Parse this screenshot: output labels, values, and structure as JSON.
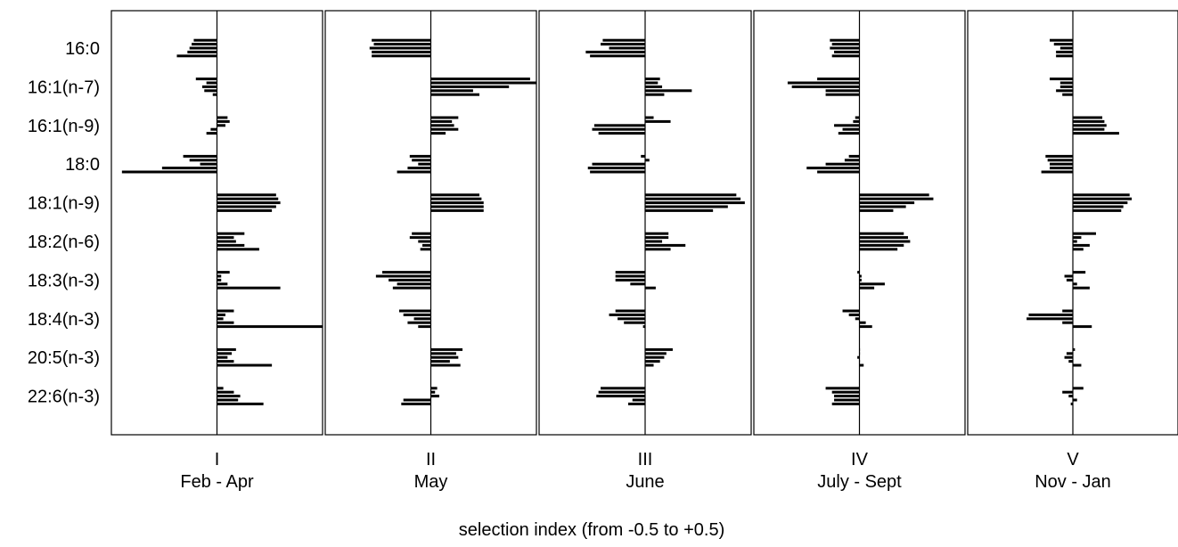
{
  "chart_data": {
    "type": "bar",
    "orientation": "horizontal",
    "layout": "small-multiples",
    "xlabel": "selection index (from -0.5 to +0.5)",
    "xlim": [
      -0.5,
      0.5
    ],
    "categories": [
      "16:0",
      "16:1(n-7)",
      "16:1(n-9)",
      "18:0",
      "18:1(n-9)",
      "18:2(n-6)",
      "18:3(n-3)",
      "18:4(n-3)",
      "20:5(n-3)",
      "22:6(n-3)"
    ],
    "panels": [
      {
        "name": "I",
        "period": "Feb - Apr",
        "values": [
          [
            -0.11,
            -0.12,
            -0.13,
            -0.14,
            -0.19
          ],
          [
            -0.1,
            -0.05,
            -0.07,
            -0.06,
            -0.02
          ],
          [
            0.05,
            0.06,
            0.04,
            -0.03,
            -0.05
          ],
          [
            -0.16,
            -0.13,
            -0.08,
            -0.26,
            -0.45
          ],
          [
            0.28,
            0.29,
            0.3,
            0.28,
            0.26
          ],
          [
            0.13,
            0.08,
            0.09,
            0.13,
            0.2
          ],
          [
            0.06,
            0.02,
            0.02,
            0.05,
            0.3
          ],
          [
            0.08,
            0.04,
            0.03,
            0.08,
            0.5
          ],
          [
            0.09,
            0.07,
            0.05,
            0.08,
            0.26
          ],
          [
            0.03,
            0.08,
            0.11,
            0.1,
            0.22
          ]
        ]
      },
      {
        "name": "II",
        "period": "May",
        "values": [
          [
            -0.28,
            -0.27,
            -0.29,
            -0.28,
            -0.28
          ],
          [
            0.47,
            0.5,
            0.37,
            0.2,
            0.23
          ],
          [
            0.13,
            0.1,
            0.11,
            0.13,
            0.07
          ],
          [
            -0.1,
            -0.09,
            -0.06,
            -0.11,
            -0.16
          ],
          [
            0.23,
            0.24,
            0.25,
            0.25,
            0.25
          ],
          [
            -0.09,
            -0.1,
            -0.06,
            -0.04,
            -0.05
          ],
          [
            -0.23,
            -0.26,
            -0.2,
            -0.16,
            -0.18
          ],
          [
            -0.15,
            -0.13,
            -0.08,
            -0.11,
            -0.06
          ],
          [
            0.15,
            0.12,
            0.13,
            0.09,
            0.14
          ],
          [
            0.03,
            0.02,
            0.04,
            -0.13,
            -0.14
          ]
        ]
      },
      {
        "name": "III",
        "period": "June",
        "values": [
          [
            -0.2,
            -0.21,
            -0.17,
            -0.28,
            -0.26
          ],
          [
            0.07,
            0.06,
            0.08,
            0.22,
            0.09
          ],
          [
            0.04,
            0.12,
            -0.24,
            -0.25,
            -0.22
          ],
          [
            -0.02,
            0.02,
            -0.25,
            -0.27,
            -0.26
          ],
          [
            0.43,
            0.45,
            0.47,
            0.39,
            0.32
          ],
          [
            0.11,
            0.11,
            0.08,
            0.19,
            0.12
          ],
          [
            -0.14,
            -0.14,
            -0.14,
            -0.07,
            0.05
          ],
          [
            -0.14,
            -0.17,
            -0.13,
            -0.1,
            -0.01
          ],
          [
            0.13,
            0.1,
            0.09,
            0.07,
            0.04
          ],
          [
            -0.21,
            -0.22,
            -0.23,
            -0.06,
            -0.08
          ]
        ]
      },
      {
        "name": "IV",
        "period": "July - Sept",
        "values": [
          [
            -0.14,
            -0.13,
            -0.14,
            -0.12,
            -0.13
          ],
          [
            -0.2,
            -0.34,
            -0.32,
            -0.16,
            -0.16
          ],
          [
            -0.02,
            -0.03,
            -0.12,
            -0.08,
            -0.1
          ],
          [
            -0.05,
            -0.07,
            -0.16,
            -0.25,
            -0.2
          ],
          [
            0.33,
            0.35,
            0.26,
            0.22,
            0.16
          ],
          [
            0.21,
            0.23,
            0.24,
            0.21,
            0.18
          ],
          [
            -0.01,
            0.01,
            0.01,
            0.12,
            0.07
          ],
          [
            -0.08,
            -0.05,
            -0.02,
            0.03,
            0.06
          ],
          [
            0.0,
            0.0,
            -0.01,
            0.0,
            0.02
          ],
          [
            -0.16,
            -0.13,
            -0.12,
            -0.12,
            -0.13
          ]
        ]
      },
      {
        "name": "V",
        "period": "Nov - Jan",
        "values": [
          [
            -0.11,
            -0.09,
            -0.06,
            -0.08,
            -0.08
          ],
          [
            -0.11,
            -0.06,
            -0.06,
            -0.08,
            -0.05
          ],
          [
            0.14,
            0.15,
            0.16,
            0.15,
            0.22
          ],
          [
            -0.13,
            -0.12,
            -0.11,
            -0.11,
            -0.15
          ],
          [
            0.27,
            0.28,
            0.26,
            0.24,
            0.23
          ],
          [
            0.11,
            0.04,
            0.02,
            0.08,
            0.05
          ],
          [
            0.06,
            -0.04,
            -0.03,
            0.02,
            0.08
          ],
          [
            -0.05,
            -0.21,
            -0.22,
            -0.05,
            0.09
          ],
          [
            0.01,
            -0.03,
            -0.04,
            -0.02,
            0.04
          ],
          [
            0.05,
            -0.05,
            -0.02,
            0.02,
            -0.01
          ]
        ]
      }
    ]
  }
}
